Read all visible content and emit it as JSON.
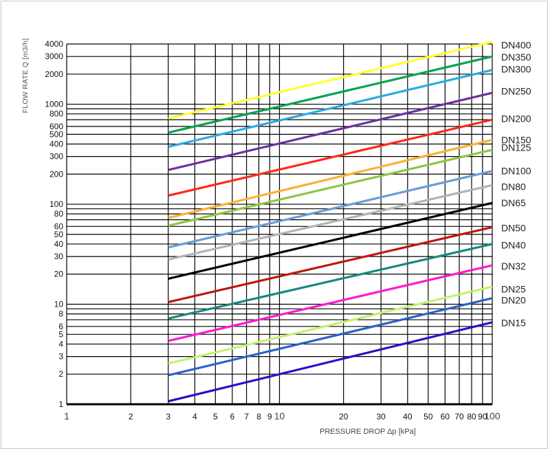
{
  "chart_data": {
    "type": "line",
    "xlabel": "PRESSURE DROP Δp  [kPa]",
    "ylabel": "FLOW RATE  Q  [m3/h]",
    "x_scale": "log",
    "y_scale": "log",
    "xlim": [
      1,
      100
    ],
    "ylim": [
      1,
      4000
    ],
    "grid": true,
    "legend": "right",
    "x_ticks": [
      {
        "v": 1,
        "label": "1",
        "big": true
      },
      {
        "v": 2,
        "label": "2"
      },
      {
        "v": 3,
        "label": "3"
      },
      {
        "v": 4,
        "label": "4"
      },
      {
        "v": 5,
        "label": "5"
      },
      {
        "v": 6,
        "label": "6"
      },
      {
        "v": 7,
        "label": "7"
      },
      {
        "v": 8,
        "label": "8"
      },
      {
        "v": 9,
        "label": "9"
      },
      {
        "v": 10,
        "label": "10",
        "big": true
      },
      {
        "v": 20,
        "label": "20"
      },
      {
        "v": 30,
        "label": "30"
      },
      {
        "v": 40,
        "label": "40"
      },
      {
        "v": 50,
        "label": "50"
      },
      {
        "v": 60,
        "label": "60"
      },
      {
        "v": 70,
        "label": "70"
      },
      {
        "v": 80,
        "label": "80"
      },
      {
        "v": 90,
        "label": "90"
      },
      {
        "v": 100,
        "label": "100",
        "big": true
      }
    ],
    "y_ticks": [
      {
        "v": 1,
        "label": "1"
      },
      {
        "v": 2,
        "label": "2"
      },
      {
        "v": 3,
        "label": "3"
      },
      {
        "v": 4,
        "label": "4"
      },
      {
        "v": 5,
        "label": "5"
      },
      {
        "v": 6,
        "label": "6"
      },
      {
        "v": 7,
        "label": ""
      },
      {
        "v": 8,
        "label": "8"
      },
      {
        "v": 9,
        "label": ""
      },
      {
        "v": 10,
        "label": "10"
      },
      {
        "v": 20,
        "label": "20"
      },
      {
        "v": 30,
        "label": "30"
      },
      {
        "v": 40,
        "label": "40"
      },
      {
        "v": 50,
        "label": "50"
      },
      {
        "v": 60,
        "label": "60"
      },
      {
        "v": 70,
        "label": ""
      },
      {
        "v": 80,
        "label": "80"
      },
      {
        "v": 90,
        "label": ""
      },
      {
        "v": 100,
        "label": "100"
      },
      {
        "v": 200,
        "label": "200"
      },
      {
        "v": 300,
        "label": "300"
      },
      {
        "v": 400,
        "label": "400"
      },
      {
        "v": 500,
        "label": "500"
      },
      {
        "v": 600,
        "label": "600"
      },
      {
        "v": 700,
        "label": ""
      },
      {
        "v": 800,
        "label": "800"
      },
      {
        "v": 900,
        "label": ""
      },
      {
        "v": 1000,
        "label": "1000"
      },
      {
        "v": 2000,
        "label": "2000"
      },
      {
        "v": 3000,
        "label": "3000"
      },
      {
        "v": 4000,
        "label": "4000"
      }
    ],
    "series": [
      {
        "name": "DN400",
        "color": "#ffff33",
        "x": [
          3,
          100
        ],
        "y": [
          720,
          4200
        ]
      },
      {
        "name": "DN350",
        "color": "#00a550",
        "x": [
          3,
          100
        ],
        "y": [
          520,
          3000
        ]
      },
      {
        "name": "DN300",
        "color": "#29abe2",
        "x": [
          3,
          100
        ],
        "y": [
          375,
          2200
        ]
      },
      {
        "name": "DN250",
        "color": "#7030a0",
        "x": [
          3,
          100
        ],
        "y": [
          220,
          1300
        ]
      },
      {
        "name": "DN200",
        "color": "#ff2a1a",
        "x": [
          3,
          100
        ],
        "y": [
          122,
          700
        ]
      },
      {
        "name": "DN150",
        "color": "#fbb034",
        "x": [
          3,
          100
        ],
        "y": [
          73,
          440
        ]
      },
      {
        "name": "DN125",
        "color": "#8cc63f",
        "x": [
          3,
          100
        ],
        "y": [
          61,
          350
        ]
      },
      {
        "name": "DN100",
        "color": "#6a9bd8",
        "x": [
          3,
          100
        ],
        "y": [
          37,
          215
        ]
      },
      {
        "name": "DN80",
        "color": "#b3b3b3",
        "x": [
          3,
          100
        ],
        "y": [
          28,
          155
        ]
      },
      {
        "name": "DN65",
        "color": "#000000",
        "x": [
          3,
          100
        ],
        "y": [
          18,
          103
        ]
      },
      {
        "name": "DN50",
        "color": "#c0170f",
        "x": [
          3,
          100
        ],
        "y": [
          10.5,
          59
        ]
      },
      {
        "name": "DN40",
        "color": "#168a80",
        "x": [
          3,
          100
        ],
        "y": [
          7.2,
          40
        ]
      },
      {
        "name": "DN32",
        "color": "#ff1ccf",
        "x": [
          3,
          100
        ],
        "y": [
          4.3,
          24.5
        ]
      },
      {
        "name": "DN25",
        "color": "#c6f06e",
        "x": [
          3,
          100
        ],
        "y": [
          2.55,
          15
        ]
      },
      {
        "name": "DN20",
        "color": "#2a63c8",
        "x": [
          3,
          100
        ],
        "y": [
          1.95,
          11.5
        ]
      },
      {
        "name": "DN15",
        "color": "#2a10c8",
        "x": [
          3,
          100
        ],
        "y": [
          1.07,
          6.6
        ]
      }
    ],
    "legend_labels": [
      {
        "name": "DN400",
        "at": 3900
      },
      {
        "name": "DN350",
        "at": 2950
      },
      {
        "name": "DN300",
        "at": 2250
      },
      {
        "name": "DN250",
        "at": 1350
      },
      {
        "name": "DN200",
        "at": 720
      },
      {
        "name": "DN150",
        "at": 440
      },
      {
        "name": "DN125",
        "at": 370
      },
      {
        "name": "DN100",
        "at": 215
      },
      {
        "name": "DN80",
        "at": 150
      },
      {
        "name": "DN65",
        "at": 103
      },
      {
        "name": "DN50",
        "at": 58
      },
      {
        "name": "DN40",
        "at": 39
      },
      {
        "name": "DN32",
        "at": 24
      },
      {
        "name": "DN25",
        "at": 14.2
      },
      {
        "name": "DN20",
        "at": 11
      },
      {
        "name": "DN15",
        "at": 6.5
      }
    ]
  }
}
